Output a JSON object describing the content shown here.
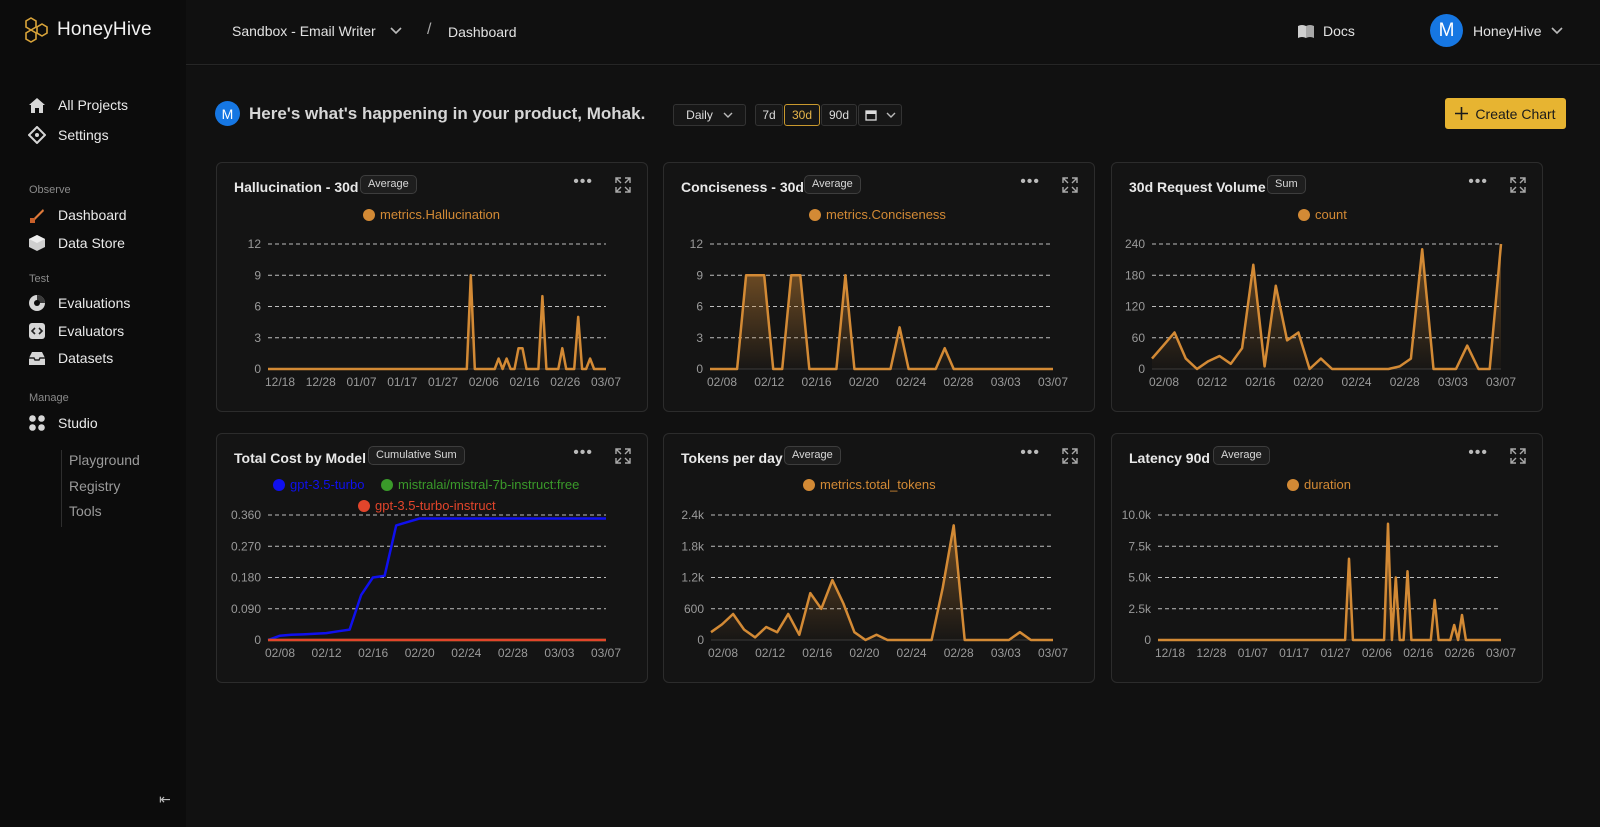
{
  "app": {
    "name": "HoneyHive"
  },
  "sidebar": {
    "top_items": [
      {
        "label": "All Projects",
        "icon": "home-icon"
      },
      {
        "label": "Settings",
        "icon": "settings-icon"
      }
    ],
    "sections": {
      "observe": "Observe",
      "test": "Test",
      "manage": "Manage"
    },
    "observe_items": [
      {
        "label": "Dashboard",
        "icon": "dashboard-icon"
      },
      {
        "label": "Data Store",
        "icon": "cube-icon"
      }
    ],
    "test_items": [
      {
        "label": "Evaluations",
        "icon": "evaluations-icon"
      },
      {
        "label": "Evaluators",
        "icon": "code-icon"
      },
      {
        "label": "Datasets",
        "icon": "inbox-icon"
      }
    ],
    "studio": {
      "label": "Studio",
      "icon": "grid-icon"
    },
    "studio_sub": [
      "Playground",
      "Registry",
      "Tools"
    ],
    "collapse_glyph": "⇤"
  },
  "header": {
    "project": "Sandbox - Email Writer",
    "separator": "/",
    "page": "Dashboard",
    "docs": "Docs",
    "user": {
      "initial": "M",
      "name": "HoneyHive"
    }
  },
  "main": {
    "welcome_initial": "M",
    "welcome": "Here's what's happening in your product, Mohak.",
    "granularity": "Daily",
    "ranges": [
      "7d",
      "30d",
      "90d"
    ],
    "active_range": "30d",
    "create_chart": "Create Chart"
  },
  "colors": {
    "accent": "#e7b431",
    "series_orange": "#d38a35",
    "series_blue": "#1010ee",
    "series_green": "#3a9a2a",
    "series_red": "#e2452b"
  },
  "chart_data": [
    {
      "type": "area",
      "title": "Hallucination - 30d",
      "badge": "Average",
      "series": [
        {
          "name": "metrics.Hallucination",
          "color": "#d38a35",
          "values": [
            0,
            0,
            0,
            0,
            0,
            0,
            0,
            0,
            0,
            0,
            0,
            0,
            0,
            0,
            0,
            0,
            0,
            0,
            0,
            0,
            0,
            0,
            0,
            0,
            0,
            0,
            0,
            0,
            0,
            0,
            0,
            0,
            0,
            0,
            0,
            0,
            0,
            0,
            0,
            0,
            0,
            0,
            0,
            0,
            0,
            0,
            0,
            0,
            0,
            0,
            0,
            9,
            0,
            0,
            0,
            0,
            0,
            0,
            1,
            0,
            1,
            0,
            0,
            2,
            2,
            0,
            0,
            0,
            0,
            7,
            0,
            0,
            0,
            0,
            2,
            0,
            0,
            0,
            5,
            0,
            0,
            1,
            0,
            0,
            0,
            0
          ]
        }
      ],
      "x_ticks": [
        "12/18",
        "12/28",
        "01/07",
        "01/17",
        "01/27",
        "02/06",
        "02/16",
        "02/26",
        "03/07"
      ],
      "y_ticks": [
        "0",
        "3",
        "6",
        "9",
        "12"
      ],
      "ylim": [
        0,
        12
      ]
    },
    {
      "type": "area",
      "title": "Conciseness - 30d",
      "badge": "Average",
      "series": [
        {
          "name": "metrics.Conciseness",
          "color": "#d38a35",
          "values": [
            0,
            0,
            0,
            0,
            9,
            9,
            9,
            0,
            0,
            9,
            9,
            0,
            0,
            0,
            0,
            9,
            0,
            0,
            0,
            0,
            0,
            4,
            0,
            0,
            0,
            0,
            2,
            0,
            0,
            0,
            0,
            0,
            0,
            0,
            0,
            0,
            0,
            0,
            0
          ]
        }
      ],
      "x_ticks": [
        "02/08",
        "02/12",
        "02/16",
        "02/20",
        "02/24",
        "02/28",
        "03/03",
        "03/07"
      ],
      "y_ticks": [
        "0",
        "3",
        "6",
        "9",
        "12"
      ],
      "ylim": [
        0,
        12
      ]
    },
    {
      "type": "area",
      "title": "30d Request Volume",
      "badge": "Sum",
      "series": [
        {
          "name": "count",
          "color": "#d38a35",
          "values": [
            20,
            45,
            70,
            20,
            0,
            15,
            25,
            10,
            40,
            200,
            5,
            160,
            55,
            70,
            0,
            20,
            0,
            0,
            0,
            0,
            0,
            0,
            5,
            20,
            230,
            0,
            0,
            0,
            45,
            0,
            0,
            240
          ]
        }
      ],
      "x_ticks": [
        "02/08",
        "02/12",
        "02/16",
        "02/20",
        "02/24",
        "02/28",
        "03/03",
        "03/07"
      ],
      "y_ticks": [
        "0",
        "60",
        "120",
        "180",
        "240"
      ],
      "ylim": [
        0,
        240
      ]
    },
    {
      "type": "line",
      "title": "Total Cost by Model",
      "badge": "Cumulative Sum",
      "series": [
        {
          "name": "gpt-3.5-turbo",
          "color": "#1010ee",
          "values": [
            0,
            0.012,
            0.015,
            0.016,
            0.018,
            0.02,
            0.025,
            0.03,
            0.13,
            0.18,
            0.185,
            0.33,
            0.34,
            0.35,
            0.35,
            0.35,
            0.35,
            0.35,
            0.35,
            0.35,
            0.35,
            0.35,
            0.35,
            0.35,
            0.35,
            0.35,
            0.35,
            0.35,
            0.35,
            0.35
          ]
        },
        {
          "name": "mistralai/mistral-7b-instruct:free",
          "color": "#3a9a2a",
          "values": [
            0,
            0,
            0,
            0,
            0,
            0,
            0,
            0,
            0,
            0,
            0,
            0,
            0,
            0,
            0,
            0,
            0,
            0,
            0,
            0,
            0,
            0,
            0,
            0,
            0,
            0,
            0,
            0,
            0,
            0
          ]
        },
        {
          "name": "gpt-3.5-turbo-instruct",
          "color": "#e2452b",
          "values": [
            0,
            0,
            0,
            0,
            0,
            0,
            0,
            0,
            0,
            0,
            0,
            0,
            0,
            0,
            0,
            0,
            0,
            0,
            0,
            0,
            0,
            0,
            0,
            0,
            0,
            0,
            0,
            0,
            0,
            0
          ]
        }
      ],
      "x_ticks": [
        "02/08",
        "02/12",
        "02/16",
        "02/20",
        "02/24",
        "02/28",
        "03/03",
        "03/07"
      ],
      "y_ticks": [
        "0",
        "0.090",
        "0.180",
        "0.270",
        "0.360"
      ],
      "ylim": [
        0,
        0.36
      ]
    },
    {
      "type": "area",
      "title": "Tokens per day",
      "badge": "Average",
      "series": [
        {
          "name": "metrics.total_tokens",
          "color": "#d38a35",
          "values": [
            150,
            300,
            500,
            200,
            50,
            250,
            150,
            500,
            100,
            900,
            600,
            1150,
            700,
            150,
            0,
            100,
            0,
            0,
            0,
            0,
            0,
            1000,
            2200,
            0,
            0,
            0,
            0,
            0,
            150,
            0,
            0,
            0
          ]
        }
      ],
      "x_ticks": [
        "02/08",
        "02/12",
        "02/16",
        "02/20",
        "02/24",
        "02/28",
        "03/03",
        "03/07"
      ],
      "y_ticks": [
        "0",
        "600",
        "1.2k",
        "1.8k",
        "2.4k"
      ],
      "ylim": [
        0,
        2400
      ]
    },
    {
      "type": "area",
      "title": "Latency 90d",
      "badge": "Average",
      "series": [
        {
          "name": "duration",
          "color": "#d38a35",
          "values": [
            0,
            0,
            0,
            0,
            0,
            0,
            0,
            0,
            0,
            0,
            0,
            0,
            0,
            0,
            0,
            0,
            0,
            0,
            0,
            0,
            0,
            0,
            0,
            0,
            0,
            0,
            0,
            0,
            0,
            0,
            0,
            0,
            0,
            0,
            0,
            0,
            0,
            0,
            0,
            0,
            0,
            0,
            0,
            0,
            0,
            0,
            0,
            0,
            0,
            6500,
            0,
            0,
            0,
            0,
            0,
            0,
            0,
            0,
            0,
            9300,
            0,
            5000,
            0,
            0,
            5500,
            0,
            0,
            0,
            0,
            0,
            0,
            3200,
            0,
            0,
            0,
            0,
            1200,
            0,
            2000,
            0,
            0,
            0,
            0,
            0,
            0,
            0,
            0,
            0,
            0
          ]
        }
      ],
      "x_ticks": [
        "12/18",
        "12/28",
        "01/07",
        "01/17",
        "01/27",
        "02/06",
        "02/16",
        "02/26",
        "03/07"
      ],
      "y_ticks": [
        "0",
        "2.5k",
        "5.0k",
        "7.5k",
        "10.0k"
      ],
      "ylim": [
        0,
        10000
      ]
    }
  ]
}
